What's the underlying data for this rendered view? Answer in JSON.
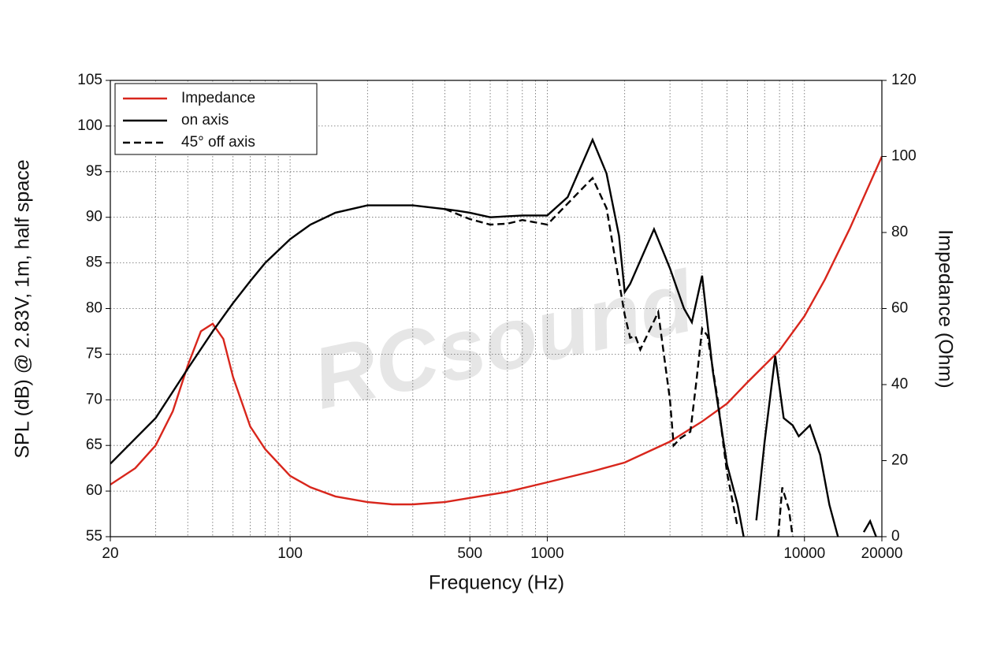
{
  "chart_data": {
    "type": "line",
    "watermark": "RCsound",
    "xlabel": "Frequency (Hz)",
    "ylabel": "SPL (dB) @ 2.83V, 1m, half space",
    "y2label": "Impedance (Ohm)",
    "xscale": "log",
    "xlim": [
      20,
      20000
    ],
    "xticks": [
      20,
      100,
      500,
      1000,
      10000,
      20000
    ],
    "xminorticks": [
      30,
      40,
      50,
      60,
      70,
      80,
      90,
      200,
      300,
      400,
      600,
      700,
      800,
      900,
      2000,
      3000,
      4000,
      5000,
      6000,
      7000,
      8000,
      9000
    ],
    "ylim": [
      55,
      105
    ],
    "yticks": [
      55,
      60,
      65,
      70,
      75,
      80,
      85,
      90,
      95,
      100,
      105
    ],
    "y2lim": [
      0,
      120
    ],
    "y2ticks": [
      0,
      20,
      40,
      60,
      80,
      100,
      120
    ],
    "grid": true,
    "legend": "upper-left",
    "series": [
      {
        "name": "Impedance",
        "color": "#d8261c",
        "dash": false,
        "axis": "y2",
        "x": [
          20,
          25,
          30,
          35,
          40,
          45,
          50,
          55,
          60,
          70,
          80,
          100,
          120,
          150,
          200,
          250,
          300,
          400,
          500,
          700,
          1000,
          1500,
          2000,
          3000,
          4000,
          5000,
          6000,
          8000,
          10000,
          12000,
          15000,
          20000
        ],
        "values": [
          13.7,
          18,
          24,
          33,
          45,
          54,
          56,
          52,
          42,
          29,
          23,
          16,
          13,
          10.6,
          9.1,
          8.5,
          8.5,
          9.1,
          10.2,
          11.8,
          14.3,
          17.2,
          19.5,
          25,
          30.3,
          35,
          40.6,
          49,
          58,
          67.6,
          81,
          100
        ]
      },
      {
        "name": "on axis",
        "color": "#000000",
        "dash": false,
        "x": [
          20,
          30,
          40,
          50,
          60,
          70,
          80,
          100,
          120,
          150,
          200,
          300,
          400,
          450,
          500,
          600,
          800,
          1000,
          1200,
          1500,
          1700,
          1900,
          2000,
          2100,
          2600,
          3000,
          3400,
          3650,
          4000,
          4400,
          5000,
          5500,
          5800,
          6200,
          6500,
          7000,
          7700,
          8300,
          9000,
          9500,
          10500,
          11500,
          12500,
          13500,
          15000,
          17000,
          18000,
          19000
        ],
        "values": [
          63,
          68,
          73.4,
          77.5,
          80.6,
          83,
          85,
          87.6,
          89.2,
          90.5,
          91.3,
          91.3,
          90.9,
          90.7,
          90.5,
          90,
          90.2,
          90.2,
          92.2,
          98.5,
          94.8,
          88,
          81.8,
          82.7,
          88.7,
          84.4,
          80,
          78.5,
          83.6,
          73.2,
          62.9,
          58.5,
          55,
          null,
          56.8,
          65.4,
          74.8,
          68,
          67.2,
          66,
          67.2,
          64,
          58.5,
          55,
          null,
          55.5,
          56.7,
          55
        ]
      },
      {
        "name": "45° off axis",
        "color": "#000000",
        "dash": true,
        "x": [
          400,
          500,
          600,
          700,
          800,
          1000,
          1200,
          1500,
          1700,
          1900,
          2000,
          2100,
          2200,
          2300,
          2700,
          3000,
          3100,
          3300,
          3600,
          3800,
          4000,
          4200,
          4600,
          5000,
          5500,
          6000,
          7900,
          8200,
          8700,
          9000
        ],
        "values": [
          90.9,
          89.8,
          89.2,
          89.3,
          89.7,
          89.2,
          91.5,
          94.3,
          91,
          83,
          79.3,
          76.8,
          77,
          75.5,
          79.6,
          70,
          65,
          65.8,
          66.5,
          72,
          77.8,
          77,
          70,
          62,
          56,
          null,
          55,
          60.4,
          58,
          55
        ]
      }
    ]
  }
}
